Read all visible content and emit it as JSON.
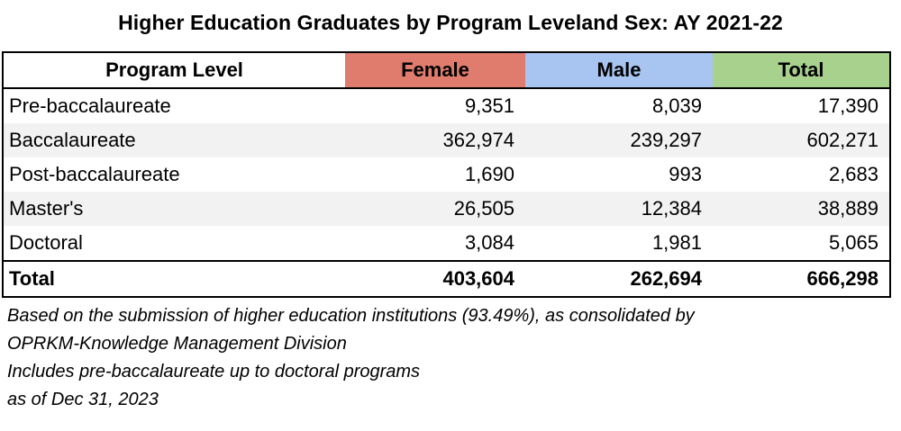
{
  "title": "Higher Education Graduates by Program Leveland Sex: AY 2021-22",
  "colors": {
    "female_header": "#e07c6e",
    "male_header": "#a8c4f0",
    "total_header": "#a9d18e",
    "stripe": "#f2f2f2"
  },
  "table": {
    "headers": {
      "program_level": "Program Level",
      "female": "Female",
      "male": "Male",
      "total": "Total"
    },
    "rows": [
      {
        "level": "Pre-baccalaureate",
        "female": "9,351",
        "male": "8,039",
        "total": "17,390"
      },
      {
        "level": "Baccalaureate",
        "female": "362,974",
        "male": "239,297",
        "total": "602,271"
      },
      {
        "level": "Post-baccalaureate",
        "female": "1,690",
        "male": "993",
        "total": "2,683"
      },
      {
        "level": "Master's",
        "female": "26,505",
        "male": "12,384",
        "total": "38,889"
      },
      {
        "level": "Doctoral",
        "female": "3,084",
        "male": "1,981",
        "total": "5,065"
      }
    ],
    "total_row": {
      "level": "Total",
      "female": "403,604",
      "male": "262,694",
      "total": "666,298"
    }
  },
  "notes": [
    "Based on the submission of higher education institutions (93.49%), as consolidated by",
    "OPRKM-Knowledge Management Division",
    "Includes pre-baccalaureate up to doctoral programs",
    "as of Dec 31, 2023"
  ]
}
